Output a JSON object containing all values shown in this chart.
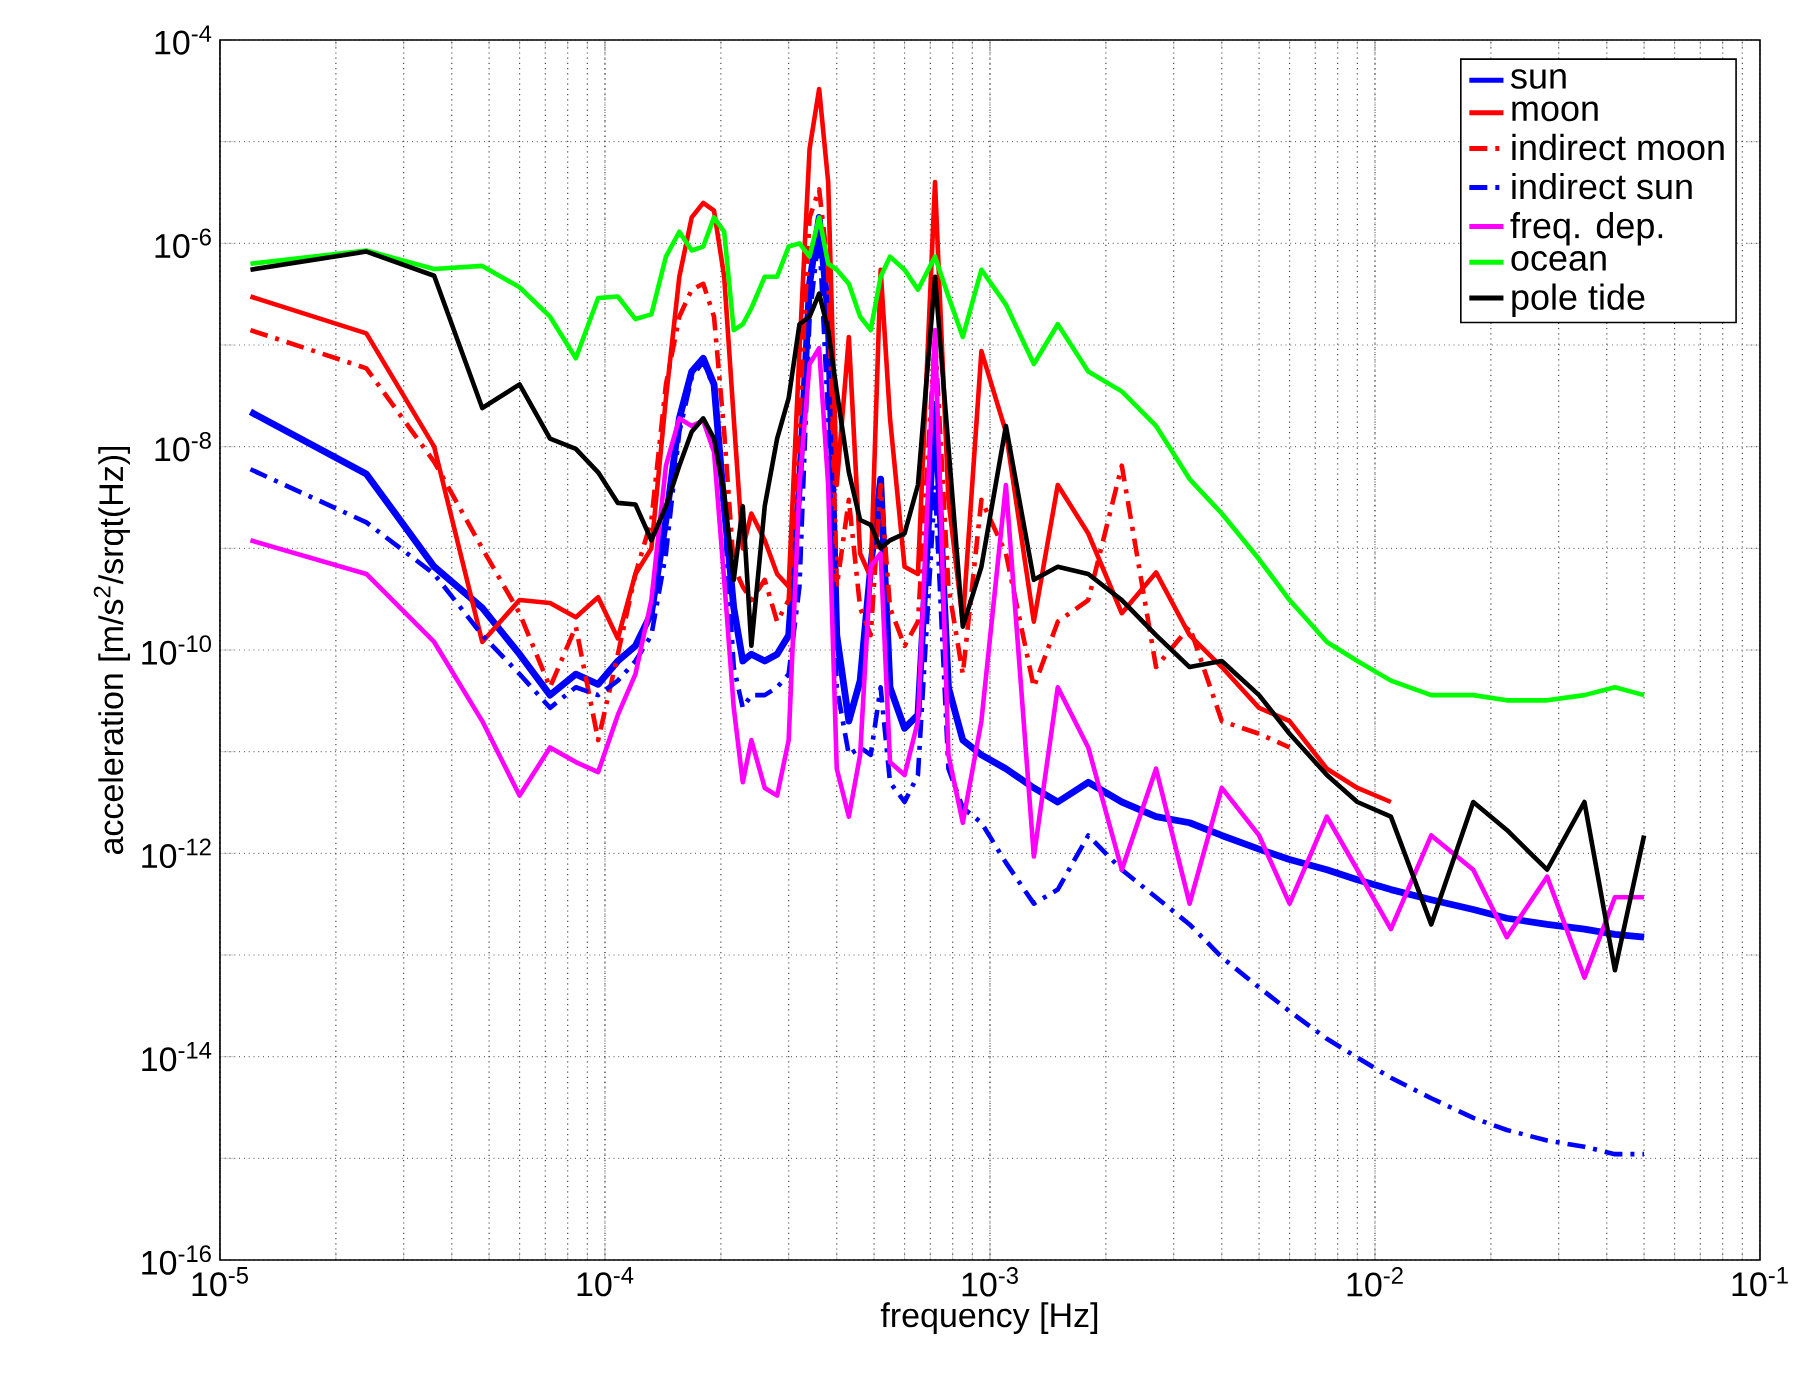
{
  "chart_data": {
    "type": "line",
    "xlabel": "frequency [Hz]",
    "ylabel": "acceleration [m/s$^{2}$/srqt(Hz)]",
    "log": "xy",
    "grid": true,
    "legend": "top right",
    "xlim": [
      1e-05,
      0.1
    ],
    "ylim": [
      1e-16,
      0.0001
    ],
    "xticks": [
      {
        "value": 1e-05,
        "label": "10$^{-5}$"
      },
      {
        "value": 0.0001,
        "label": "10$^{-4}$"
      },
      {
        "value": 0.001,
        "label": "10$^{-3}$"
      },
      {
        "value": 0.01,
        "label": "10$^{-2}$"
      },
      {
        "value": 0.1,
        "label": "10$^{-1}$"
      }
    ],
    "yticks": [
      {
        "value": 1e-16,
        "label": "10$^{-16}$"
      },
      {
        "value": 1e-15,
        "label": null
      },
      {
        "value": 1e-14,
        "label": "10$^{-14}$"
      },
      {
        "value": 1e-13,
        "label": null
      },
      {
        "value": 1e-12,
        "label": "10$^{-12}$"
      },
      {
        "value": 1e-11,
        "label": null
      },
      {
        "value": 1e-10,
        "label": "10$^{-10}$"
      },
      {
        "value": 1e-09,
        "label": null
      },
      {
        "value": 1e-08,
        "label": "10$^{-8}$"
      },
      {
        "value": 1e-07,
        "label": null
      },
      {
        "value": 1e-06,
        "label": "10$^{-6}$"
      },
      {
        "value": 1e-05,
        "label": null
      },
      {
        "value": 0.0001,
        "label": "10$^{-4}$"
      }
    ],
    "x": [
      1.2e-05,
      2.4e-05,
      3.6e-05,
      4.8e-05,
      6e-05,
      7.2e-05,
      8.4e-05,
      9.6e-05,
      0.000108,
      0.00012,
      0.000132,
      0.000144,
      0.000156,
      0.000168,
      0.00018,
      0.000192,
      0.000204,
      0.000216,
      0.000228,
      0.00024,
      0.00026,
      0.00028,
      0.0003,
      0.00032,
      0.00034,
      0.00036,
      0.00038,
      0.0004,
      0.00043,
      0.00046,
      0.00049,
      0.00052,
      0.00055,
      0.0006,
      0.00065,
      0.00072,
      0.00078,
      0.00085,
      0.00095,
      0.0011,
      0.0013,
      0.0015,
      0.0018,
      0.0022,
      0.0027,
      0.0033,
      0.004,
      0.005,
      0.006,
      0.0075,
      0.009,
      0.011,
      0.014,
      0.018,
      0.022,
      0.028,
      0.035,
      0.042,
      0.05
    ],
    "series": [
      {
        "name": "sun",
        "color": "#0000ff",
        "line_style": "solid",
        "values": [
          2.2e-08,
          5.4e-09,
          6.6e-10,
          2.6e-10,
          9.1e-11,
          3.6e-11,
          5.8e-11,
          4.6e-11,
          7.8e-11,
          1.1e-10,
          2.3e-10,
          1.9e-09,
          1.9e-08,
          5.5e-08,
          7.4e-08,
          4.1e-08,
          2.6e-09,
          2.6e-10,
          7.8e-11,
          9.1e-11,
          7.8e-11,
          9.1e-11,
          1.4e-10,
          4.2e-09,
          4e-07,
          1.8e-06,
          1.9e-07,
          1.4e-10,
          2e-11,
          5e-11,
          6.6e-10,
          4.8e-09,
          4.3e-11,
          1.7e-11,
          2.3e-11,
          2.6e-08,
          4.3e-11,
          1.3e-11,
          9.3e-12,
          6.8e-12,
          4.4e-12,
          3.2e-12,
          5e-12,
          3.2e-12,
          2.3e-12,
          2e-12,
          1.5e-12,
          1.1e-12,
          8.7e-13,
          6.9e-13,
          5.5e-13,
          4.4e-13,
          3.5e-13,
          2.8e-13,
          2.3e-13,
          2e-13,
          1.8e-13,
          1.6e-13,
          1.5e-13
        ]
      },
      {
        "name": "moon",
        "color": "#ff0000",
        "line_style": "solid",
        "values": [
          3e-07,
          1.3e-07,
          1e-08,
          1.2e-10,
          3.1e-10,
          2.9e-10,
          2.1e-10,
          3.3e-10,
          1.3e-10,
          5.6e-10,
          1e-09,
          3e-08,
          4.7e-07,
          1.8e-06,
          2.5e-06,
          2.1e-06,
          4.7e-07,
          1.9e-08,
          1e-09,
          2.2e-09,
          1.2e-09,
          5.6e-10,
          4.2e-10,
          8.7e-08,
          8.5e-06,
          3.3e-05,
          4e-06,
          4.2e-09,
          1.2e-07,
          8.9e-10,
          5.2e-10,
          5.5e-07,
          1.9e-08,
          6.6e-10,
          5.6e-10,
          4e-06,
          3e-09,
          1.9e-10,
          8.7e-08,
          1.4e-08,
          1.9e-10,
          4.2e-09,
          1.4e-09,
          2.3e-10,
          5.8e-10,
          1.4e-10,
          6.8e-11,
          2.7e-11,
          2e-11,
          6.8e-12,
          4.4e-12,
          3.2e-12,
          null,
          null,
          null,
          null,
          null,
          null,
          null
        ]
      },
      {
        "name": "indirect moon",
        "color": "#ff0000",
        "line_style": "dashdot",
        "values": [
          1.4e-07,
          5.9e-08,
          7.1e-09,
          1e-09,
          2.3e-10,
          4.3e-11,
          1.7e-10,
          1.3e-11,
          9.1e-11,
          5.6e-10,
          1.9e-09,
          4.1e-08,
          1.9e-07,
          3.5e-07,
          4e-07,
          1.9e-07,
          1.4e-08,
          6.6e-10,
          4.2e-10,
          3.1e-10,
          4.9e-10,
          1.9e-10,
          3.1e-10,
          1.9e-08,
          1.8e-06,
          3.4e-06,
          5.5e-07,
          4.2e-10,
          3e-09,
          2.6e-10,
          1.4e-10,
          4.2e-09,
          2.6e-10,
          1.1e-10,
          1.9e-10,
          1.2e-07,
          4.2e-10,
          5.8e-11,
          3e-09,
          8.9e-10,
          4.3e-11,
          1.9e-10,
          3.1e-10,
          6.5e-09,
          6.8e-11,
          1.7e-10,
          2e-11,
          1.5e-11,
          1.1e-11,
          null,
          null,
          null,
          null,
          null,
          null,
          null,
          null,
          null,
          null
        ]
      },
      {
        "name": "indirect sun",
        "color": "#0000ff",
        "line_style": "dashdot",
        "values": [
          6e-09,
          1.8e-09,
          5.6e-10,
          1.4e-10,
          5.8e-11,
          2.7e-11,
          4.3e-11,
          3.6e-11,
          5e-11,
          7.8e-11,
          1.4e-10,
          8.9e-10,
          1.4e-08,
          4.8e-08,
          6.9e-08,
          3.8e-08,
          2.2e-09,
          6.8e-11,
          2.7e-11,
          3.6e-11,
          3.6e-11,
          4.3e-11,
          5.8e-11,
          4.2e-10,
          1.9e-07,
          1.3e-06,
          1.9e-08,
          4.3e-11,
          9.3e-12,
          1.1e-11,
          9.3e-12,
          4.3e-11,
          5e-12,
          3.2e-12,
          5.9e-12,
          4.2e-09,
          6.8e-12,
          2.8e-12,
          2e-12,
          8.1e-13,
          3.2e-13,
          4.4e-13,
          1.5e-12,
          6.9e-13,
          3.7e-13,
          2e-13,
          9.5e-14,
          4.8e-14,
          2.8e-14,
          1.5e-14,
          9.8e-15,
          6.2e-15,
          3.9e-15,
          2.5e-15,
          1.9e-15,
          1.5e-15,
          1.3e-15,
          1.1e-15,
          1.1e-15
        ]
      },
      {
        "name": "freq. dep.",
        "color": "#ff00ff",
        "line_style": "solid",
        "values": [
          1.2e-09,
          5.6e-10,
          1.2e-10,
          2e-11,
          3.7e-12,
          1.1e-11,
          7.9e-12,
          6.3e-12,
          2.3e-11,
          5.8e-11,
          3.1e-10,
          6.5e-09,
          1.9e-08,
          1.6e-08,
          1.8e-08,
          8.9e-09,
          4.9e-10,
          2.7e-11,
          5e-12,
          1.3e-11,
          4.4e-12,
          3.7e-12,
          1.3e-11,
          4.2e-09,
          6.5e-08,
          9.3e-08,
          4.2e-09,
          6.8e-12,
          2.3e-12,
          9.3e-12,
          6.6e-10,
          8.9e-10,
          7.9e-12,
          5.9e-12,
          2e-11,
          1.4e-07,
          9.3e-12,
          2e-12,
          2e-11,
          4.2e-09,
          9.3e-13,
          4.3e-11,
          1.1e-11,
          6.9e-13,
          6.8e-12,
          3.2e-13,
          4.4e-12,
          1.5e-12,
          3.2e-13,
          2.3e-12,
          6.9e-13,
          1.8e-13,
          1.5e-12,
          6.9e-13,
          1.5e-13,
          5.9e-13,
          6e-14,
          3.7e-13,
          3.7e-13
        ]
      },
      {
        "name": "ocean",
        "color": "#00ff00",
        "line_style": "solid",
        "values": [
          6.3e-07,
          8.5e-07,
          5.6e-07,
          6e-07,
          3.7e-07,
          1.9e-07,
          7.4e-08,
          2.9e-07,
          3e-07,
          1.8e-07,
          2e-07,
          7.4e-07,
          1.3e-06,
          8.5e-07,
          9.3e-07,
          1.8e-06,
          1.3e-06,
          1.4e-07,
          1.6e-07,
          2.3e-07,
          4.7e-07,
          4.7e-07,
          9.3e-07,
          1e-06,
          7.4e-07,
          1.8e-06,
          6.3e-07,
          5.5e-07,
          4e-07,
          1.9e-07,
          1.4e-07,
          4.7e-07,
          7.4e-07,
          5.5e-07,
          3.5e-07,
          7.4e-07,
          3e-07,
          1.2e-07,
          5.5e-07,
          2.5e-07,
          6.5e-08,
          1.6e-07,
          5.5e-08,
          3.5e-08,
          1.6e-08,
          4.8e-09,
          2.2e-09,
          7.8e-10,
          3.1e-10,
          1.2e-10,
          7.8e-11,
          5e-11,
          3.6e-11,
          3.6e-11,
          3.2e-11,
          3.2e-11,
          3.6e-11,
          4.3e-11,
          3.6e-11
        ]
      },
      {
        "name": "pole tide",
        "color": "#000000",
        "line_style": "solid",
        "values": [
          5.5e-07,
          8.3e-07,
          4.8e-07,
          2.4e-08,
          4.1e-08,
          1.2e-08,
          9.5e-09,
          5.6e-09,
          2.8e-09,
          2.7e-09,
          1.2e-09,
          2.6e-09,
          6.5e-09,
          1.4e-08,
          1.9e-08,
          1.2e-08,
          3.5e-09,
          4.9e-10,
          2.6e-09,
          1.1e-10,
          2.6e-09,
          1.2e-08,
          3e-08,
          1.6e-07,
          1.9e-07,
          3.2e-07,
          1.4e-07,
          3.5e-08,
          5.6e-09,
          1.9e-09,
          1.7e-09,
          1e-09,
          1.2e-09,
          1.4e-09,
          4.2e-09,
          4.7e-07,
          1e-08,
          1.7e-10,
          6.6e-10,
          1.6e-08,
          4.9e-10,
          6.6e-10,
          5.6e-10,
          3.1e-10,
          1.4e-10,
          6.8e-11,
          7.8e-11,
          3.6e-11,
          1.5e-11,
          5.9e-12,
          3.2e-12,
          2.3e-12,
          2e-13,
          3.2e-12,
          1.7e-12,
          6.9e-13,
          3.2e-12,
          7.1e-14,
          1.5e-12
        ]
      }
    ]
  }
}
